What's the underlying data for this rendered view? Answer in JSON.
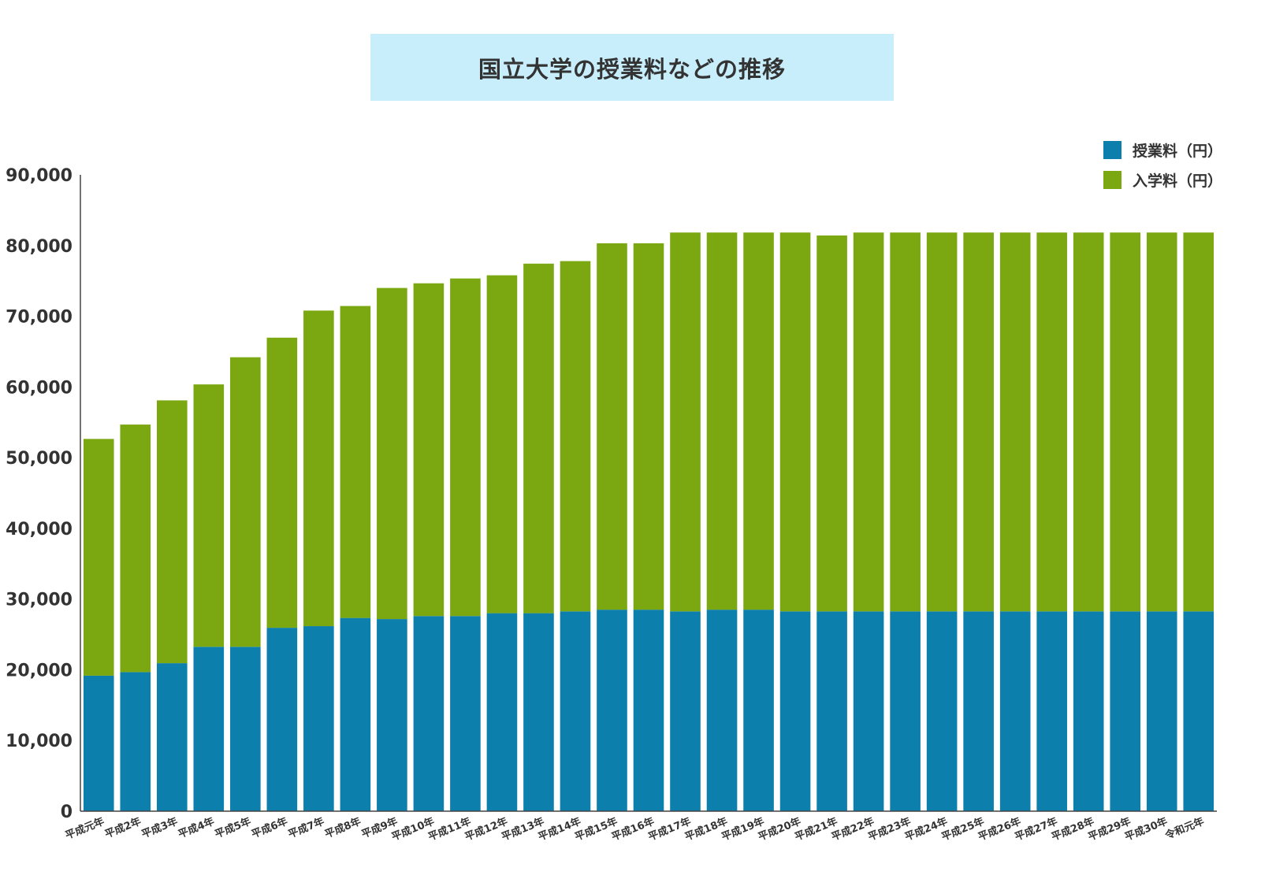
{
  "chart_data": {
    "type": "bar",
    "stacked": true,
    "title": "国立大学の授業料などの推移",
    "categories": [
      "平成元年",
      "平成2年",
      "平成3年",
      "平成4年",
      "平成5年",
      "平成6年",
      "平成7年",
      "平成8年",
      "平成9年",
      "平成10年",
      "平成11年",
      "平成12年",
      "平成13年",
      "平成14年",
      "平成15年",
      "平成16年",
      "平成17年",
      "平成18年",
      "平成19年",
      "平成20年",
      "平成21年",
      "平成22年",
      "平成23年",
      "平成24年",
      "平成25年",
      "平成26年",
      "平成27年",
      "平成28年",
      "平成29年",
      "平成30年",
      "令和元年"
    ],
    "series": [
      {
        "name": "授業料（円）",
        "color": "#0d7fac",
        "values": [
          19170,
          19670,
          20930,
          23250,
          23250,
          25940,
          26170,
          27330,
          27170,
          27600,
          27600,
          28000,
          28000,
          28260,
          28500,
          28500,
          28260,
          28500,
          28500,
          28260,
          28260,
          28260,
          28260,
          28260,
          28260,
          28260,
          28260,
          28260,
          28260,
          28260,
          28260
        ]
      },
      {
        "name": "入学料（円）",
        "color": "#7ba811",
        "values": [
          33480,
          35010,
          37170,
          37110,
          40950,
          41030,
          44630,
          44120,
          46830,
          47060,
          47740,
          47790,
          49440,
          49540,
          51820,
          51820,
          53580,
          53340,
          53340,
          53580,
          53160,
          53580,
          53580,
          53580,
          53580,
          53580,
          53580,
          53580,
          53580,
          53580,
          53580
        ]
      }
    ],
    "ylim": [
      0,
      90000
    ],
    "yticks": [
      "0",
      "10,000",
      "20,000",
      "30,000",
      "40,000",
      "50,000",
      "60,000",
      "70,000",
      "80,000",
      "90,000"
    ],
    "xlabel": "",
    "ylabel": "",
    "legend": "top-right",
    "grid": false
  }
}
